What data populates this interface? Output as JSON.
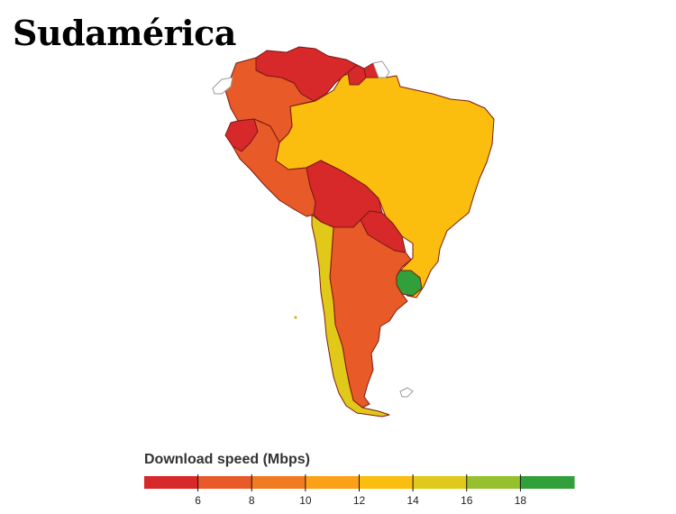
{
  "title": "Sudamérica",
  "legend": {
    "title": "Download speed (Mbps)",
    "ticks": [
      "6",
      "8",
      "10",
      "12",
      "14",
      "16",
      "18"
    ],
    "colors": [
      "#d7282a",
      "#e85a28",
      "#f07b20",
      "#fba118",
      "#fbbd0e",
      "#e0c919",
      "#97c02e",
      "#31a03a"
    ]
  },
  "regions": [
    {
      "name": "Venezuela",
      "level_color": "#d7282a"
    },
    {
      "name": "Colombia",
      "level_color": "#e85a28"
    },
    {
      "name": "Ecuador",
      "level_color": "#d7282a"
    },
    {
      "name": "Peru",
      "level_color": "#e85a28"
    },
    {
      "name": "Brazil",
      "level_color": "#fbbd0e"
    },
    {
      "name": "Bolivia",
      "level_color": "#d7282a"
    },
    {
      "name": "Paraguay",
      "level_color": "#d7282a"
    },
    {
      "name": "Chile",
      "level_color": "#e0c919"
    },
    {
      "name": "Argentina",
      "level_color": "#e85a28"
    },
    {
      "name": "Uruguay",
      "level_color": "#31a03a"
    },
    {
      "name": "Guyana",
      "level_color": "#d7282a"
    },
    {
      "name": "Suriname",
      "level_color": "#d7282a"
    },
    {
      "name": "French Guiana",
      "level_color": "#ffffff"
    }
  ]
}
